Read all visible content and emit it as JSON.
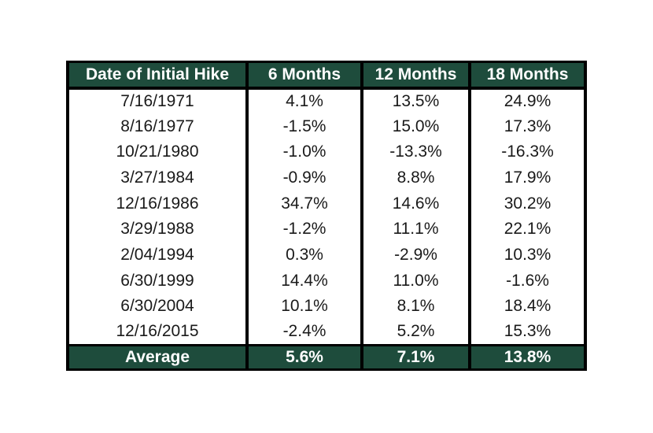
{
  "chart_data": {
    "type": "table",
    "columns": [
      "Date of Initial Hike",
      "6 Months",
      "12 Months",
      "18 Months"
    ],
    "rows": [
      [
        "7/16/1971",
        "4.1%",
        "13.5%",
        "24.9%"
      ],
      [
        "8/16/1977",
        "-1.5%",
        "15.0%",
        "17.3%"
      ],
      [
        "10/21/1980",
        "-1.0%",
        "-13.3%",
        "-16.3%"
      ],
      [
        "3/27/1984",
        "-0.9%",
        "8.8%",
        "17.9%"
      ],
      [
        "12/16/1986",
        "34.7%",
        "14.6%",
        "30.2%"
      ],
      [
        "3/29/1988",
        "-1.2%",
        "11.1%",
        "22.1%"
      ],
      [
        "2/04/1994",
        "0.3%",
        "-2.9%",
        "10.3%"
      ],
      [
        "6/30/1999",
        "14.4%",
        "11.0%",
        "-1.6%"
      ],
      [
        "6/30/2004",
        "10.1%",
        "8.1%",
        "18.4%"
      ],
      [
        "12/16/2015",
        "-2.4%",
        "5.2%",
        "15.3%"
      ]
    ],
    "footer": [
      "Average",
      "5.6%",
      "7.1%",
      "13.8%"
    ]
  },
  "colors": {
    "header_bg": "#1E4C3C",
    "header_text": "#FFFFFF",
    "body_bg": "#FFFFFF",
    "body_text": "#1A1A1A",
    "border": "#000000"
  }
}
